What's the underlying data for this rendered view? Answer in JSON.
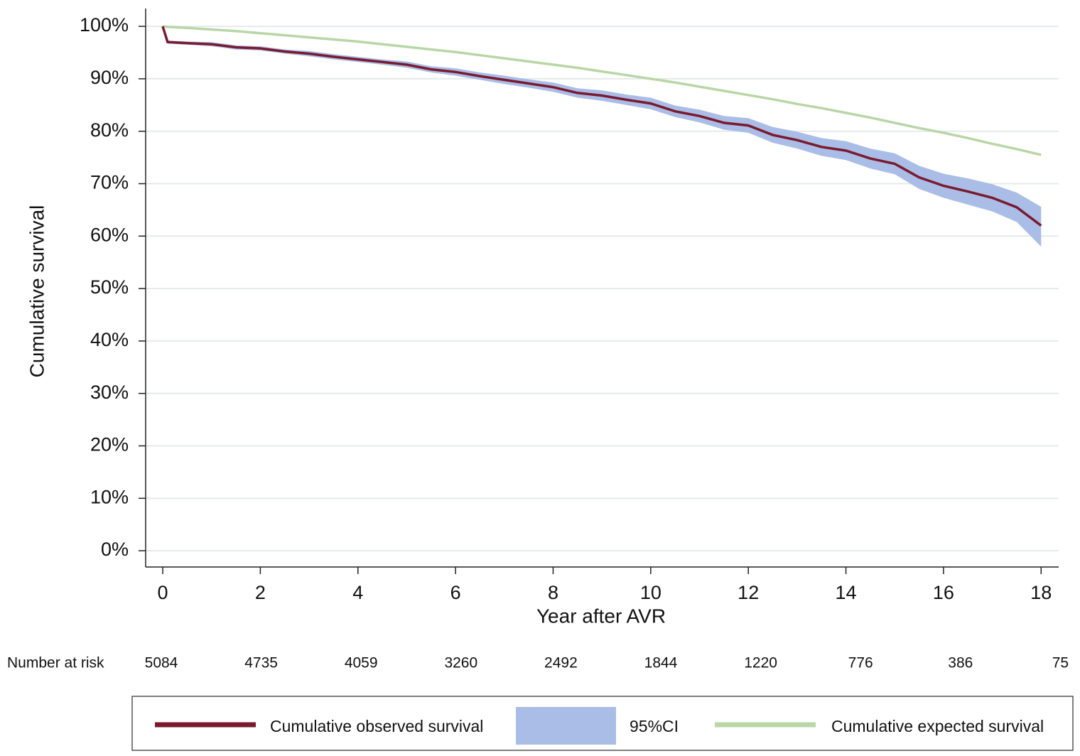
{
  "chart_data": {
    "type": "line",
    "y_label": "Cumulative survival",
    "x_label": "Year after AVR",
    "xlim": [
      -0.35,
      18.36
    ],
    "ylim": [
      -3.1,
      103.4
    ],
    "xticks": [
      0,
      2,
      4,
      6,
      8,
      10,
      12,
      14,
      16,
      18
    ],
    "yticks": [
      {
        "value": 0,
        "label": "0%"
      },
      {
        "value": 10,
        "label": "10%"
      },
      {
        "value": 20,
        "label": "20%"
      },
      {
        "value": 30,
        "label": "30%"
      },
      {
        "value": 40,
        "label": "40%"
      },
      {
        "value": 50,
        "label": "50%"
      },
      {
        "value": 60,
        "label": "60%"
      },
      {
        "value": 70,
        "label": "70%"
      },
      {
        "value": 80,
        "label": "80%"
      },
      {
        "value": 90,
        "label": "90%"
      },
      {
        "value": 100,
        "label": "100%"
      }
    ],
    "grid": true,
    "x": [
      0,
      0.1,
      0.5,
      1,
      1.5,
      2,
      2.5,
      3,
      3.5,
      4,
      4.5,
      5,
      5.5,
      6,
      6.5,
      7,
      7.5,
      8,
      8.5,
      9,
      9.5,
      10,
      10.5,
      11,
      11.5,
      12,
      12.5,
      13,
      13.5,
      14,
      14.5,
      15,
      15.5,
      16,
      16.5,
      17,
      17.5,
      18
    ],
    "series": [
      {
        "name": "Cumulative observed survival",
        "color": "#7a1a2e",
        "values": [
          100,
          97,
          96.8,
          96.6,
          96,
          95.8,
          95.2,
          94.8,
          94.2,
          93.7,
          93.2,
          92.7,
          91.8,
          91.3,
          90.5,
          89.8,
          89.1,
          88.4,
          87.3,
          86.8,
          86,
          85.3,
          83.8,
          82.9,
          81.6,
          81.1,
          79.3,
          78.3,
          77,
          76.3,
          74.8,
          73.8,
          71.2,
          69.6,
          68.5,
          67.3,
          65.5,
          62
        ]
      },
      {
        "name": "95%CI",
        "color": "#a9bde6",
        "lower": [
          100,
          96.7,
          96.5,
          96.2,
          95.6,
          95.4,
          94.8,
          94.3,
          93.7,
          93.2,
          92.7,
          92.1,
          91.2,
          90.6,
          89.8,
          89.0,
          88.3,
          87.5,
          86.4,
          85.8,
          85.0,
          84.2,
          82.7,
          81.7,
          80.3,
          79.7,
          77.8,
          76.7,
          75.3,
          74.5,
          72.9,
          71.8,
          69.0,
          67.3,
          66.0,
          64.7,
          62.7,
          58
        ],
        "upper": [
          100,
          97.3,
          97.1,
          97.0,
          96.4,
          96.2,
          95.6,
          95.3,
          94.7,
          94.2,
          93.7,
          93.3,
          92.4,
          92.0,
          91.2,
          90.6,
          89.9,
          89.3,
          88.2,
          87.8,
          87.0,
          86.4,
          84.9,
          84.1,
          82.9,
          82.5,
          80.8,
          79.9,
          78.7,
          78.1,
          76.7,
          75.8,
          73.4,
          71.9,
          71.0,
          69.9,
          68.3,
          65.6
        ]
      },
      {
        "name": "Cumulative expected survival",
        "color": "#b9d6a6",
        "values": [
          100,
          99.9,
          99.7,
          99.4,
          99.1,
          98.7,
          98.3,
          97.9,
          97.5,
          97.1,
          96.6,
          96.1,
          95.6,
          95.1,
          94.5,
          93.9,
          93.3,
          92.7,
          92.1,
          91.4,
          90.7,
          90.0,
          89.3,
          88.5,
          87.7,
          86.9,
          86.1,
          85.2,
          84.4,
          83.5,
          82.6,
          81.6,
          80.6,
          79.7,
          78.7,
          77.6,
          76.6,
          75.5
        ]
      }
    ],
    "number_at_risk": {
      "label": "Number at risk",
      "values": [
        5084,
        4735,
        4059,
        3260,
        2492,
        1844,
        1220,
        776,
        386,
        75
      ]
    }
  }
}
